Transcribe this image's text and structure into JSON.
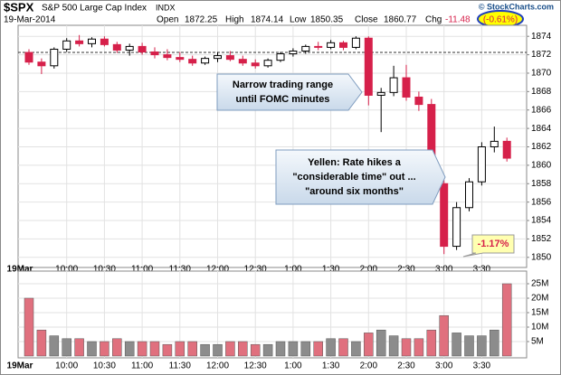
{
  "chart_data": {
    "type": "candlestick",
    "header": {
      "symbol": "$SPX",
      "name": "S&P 500 Large Cap Index",
      "exchange": "INDX",
      "date": "19-Mar-2014",
      "open_label": "Open",
      "open": 1872.25,
      "high_label": "High",
      "high": 1874.14,
      "low_label": "Low",
      "low": 1850.35,
      "close_label": "Close",
      "close": 1860.77,
      "change_label": "Chg",
      "change": -11.48,
      "change_pct": "(-0.61%)",
      "credit": "© StockCharts.com"
    },
    "categories": [
      "19Mar",
      null,
      null,
      "10:00",
      null,
      null,
      "10:30",
      null,
      null,
      "11:00",
      null,
      null,
      "11:30",
      null,
      null,
      "12:00",
      null,
      null,
      "12:30",
      null,
      null,
      "1:00",
      null,
      null,
      "1:30",
      null,
      null,
      "2:00",
      null,
      null,
      "2:30",
      null,
      null,
      "3:00",
      null,
      null,
      "3:30",
      null,
      null
    ],
    "open": [
      1872.25,
      1871.2,
      1870.8,
      1872.6,
      1873.5,
      1873.2,
      1873.7,
      1873.1,
      1872.5,
      1872.9,
      1872.3,
      1872.0,
      1871.7,
      1871.5,
      1871.1,
      1871.6,
      1871.9,
      1871.5,
      1871.1,
      1870.8,
      1871.4,
      1872.1,
      1872.4,
      1872.9,
      1872.8,
      1873.3,
      1872.8,
      1873.8,
      1867.6,
      1867.9,
      1869.5,
      1867.4,
      1866.6,
      1858.0,
      1851.2,
      1855.4,
      1858.2,
      1862.0,
      1862.6
    ],
    "high": [
      1872.6,
      1871.6,
      1872.8,
      1873.8,
      1874.14,
      1873.9,
      1874.0,
      1873.4,
      1873.2,
      1873.3,
      1872.8,
      1872.6,
      1872.3,
      1871.9,
      1871.8,
      1872.3,
      1872.4,
      1871.9,
      1871.5,
      1871.6,
      1872.3,
      1872.7,
      1873.1,
      1873.4,
      1873.6,
      1873.5,
      1874.0,
      1874.0,
      1868.4,
      1870.8,
      1870.9,
      1868.0,
      1867.2,
      1858.4,
      1856.0,
      1858.6,
      1862.5,
      1864.2,
      1863.0
    ],
    "low": [
      1870.9,
      1869.9,
      1870.5,
      1872.3,
      1872.9,
      1872.8,
      1872.9,
      1872.2,
      1871.9,
      1872.0,
      1871.6,
      1871.4,
      1871.2,
      1870.8,
      1870.9,
      1871.2,
      1871.3,
      1870.8,
      1870.5,
      1870.6,
      1871.2,
      1871.8,
      1872.1,
      1872.5,
      1872.6,
      1872.5,
      1872.6,
      1866.5,
      1863.6,
      1867.5,
      1867.0,
      1865.9,
      1857.5,
      1850.35,
      1850.8,
      1855.0,
      1857.8,
      1861.4,
      1860.4
    ],
    "close": [
      1871.2,
      1870.8,
      1872.6,
      1873.5,
      1873.2,
      1873.7,
      1873.1,
      1872.5,
      1872.9,
      1872.3,
      1872.0,
      1871.7,
      1871.5,
      1871.1,
      1871.6,
      1871.9,
      1871.5,
      1871.1,
      1870.8,
      1871.4,
      1872.1,
      1872.4,
      1872.9,
      1872.8,
      1873.3,
      1872.8,
      1873.8,
      1867.6,
      1867.9,
      1869.5,
      1867.4,
      1866.6,
      1858.0,
      1851.2,
      1855.4,
      1858.2,
      1862.0,
      1862.6,
      1860.77
    ],
    "volume": [
      20,
      9,
      7,
      6,
      6,
      5,
      5,
      6,
      5,
      5,
      5,
      4,
      5,
      5,
      4,
      4,
      5,
      5,
      4,
      4,
      5,
      5,
      5,
      5,
      6,
      6,
      5,
      8,
      9,
      7,
      6,
      6,
      9,
      14,
      8,
      7,
      7,
      9,
      25
    ],
    "up_color": "#000000",
    "down_color": "#d6204a",
    "volume_up_color": "#8c8c8c",
    "volume_down_color": "#e0707e",
    "ylim": [
      1849,
      1875
    ],
    "yticks": [
      1850,
      1852,
      1854,
      1856,
      1858,
      1860,
      1862,
      1864,
      1866,
      1868,
      1870,
      1872,
      1874
    ],
    "volume_ylim": [
      0,
      27
    ],
    "volume_yticks": [
      {
        "value": 5,
        "label": "5M"
      },
      {
        "value": 10,
        "label": "10M"
      },
      {
        "value": 15,
        "label": "15M"
      },
      {
        "value": 20,
        "label": "20M"
      },
      {
        "value": 25,
        "label": "25M"
      }
    ],
    "grid": true,
    "annotations": [
      {
        "lines": [
          "Narrow trading range",
          "until FOMC minutes"
        ]
      },
      {
        "lines": [
          "Yellen: Rate hikes a",
          "\"considerable time\" out ...",
          "\"around six months\""
        ]
      },
      {
        "lines": [
          "-1.17%"
        ]
      }
    ]
  }
}
